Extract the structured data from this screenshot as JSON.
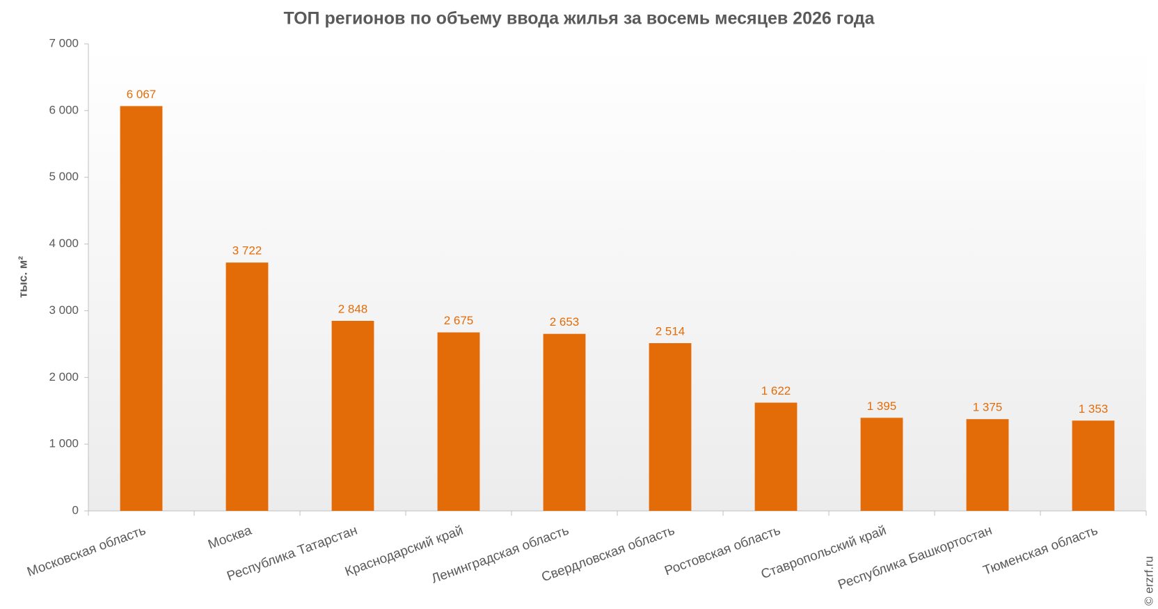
{
  "chart_data": {
    "type": "bar",
    "title": "ТОП регионов по объему ввода жилья за восемь месяцев 2026 года",
    "y_label": "тыс. м²",
    "credit": "© erzrf.ru",
    "categories": [
      "Московская  область",
      "Москва",
      "Республика  Татарстан",
      "Краснодарский  край",
      "Ленинградская  область",
      "Свердловская  область",
      "Ростовская  область",
      "Ставропольский  край",
      "Республика  Башкортостан",
      "Тюменская  область"
    ],
    "values": [
      6067,
      3722,
      2848,
      2675,
      2653,
      2514,
      1622,
      1395,
      1375,
      1353
    ],
    "value_labels": [
      "6 067",
      "3 722",
      "2 848",
      "2 675",
      "2 653",
      "2 514",
      "1 622",
      "1 395",
      "1 375",
      "1 353"
    ],
    "color": "#e36c09",
    "ylim": [
      0,
      7000
    ],
    "yticks": [
      0,
      {
        "value": 1000,
        "label": "1 000"
      },
      {
        "value": 2000,
        "label": "2 000"
      },
      {
        "value": 3000,
        "label": "3 000"
      },
      {
        "value": 4000,
        "label": "4 000"
      },
      {
        "value": 5000,
        "label": "5 000"
      },
      {
        "value": 6000,
        "label": "6 000"
      },
      {
        "value": 7000,
        "label": "7 000"
      }
    ],
    "grid": false
  }
}
